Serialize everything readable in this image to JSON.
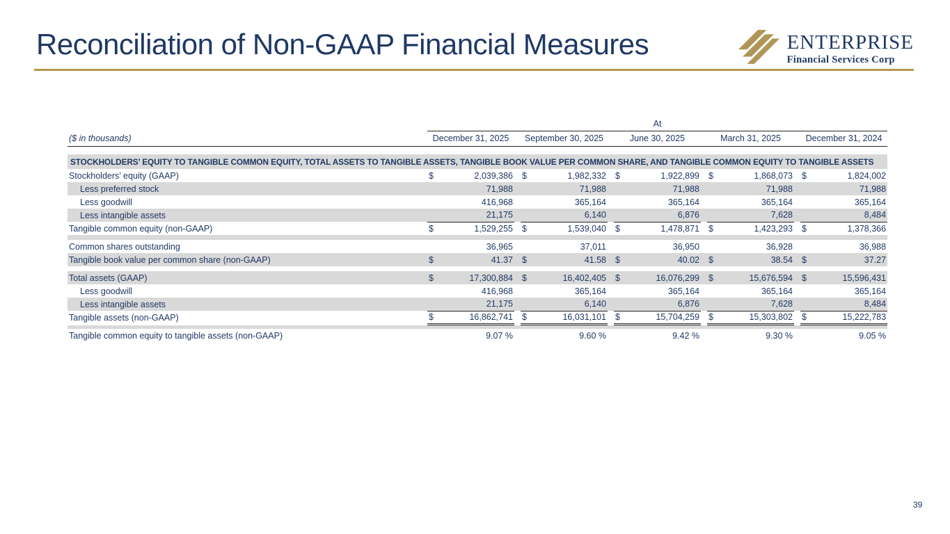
{
  "slide": {
    "title": "Reconciliation of Non-GAAP Financial Measures",
    "page_number": "39"
  },
  "logo": {
    "name": "ENTERPRISE",
    "subtitle": "Financial Services Corp"
  },
  "colors": {
    "navy": "#1f3864",
    "gold": "#b5974d",
    "shade": "#d9d9d9",
    "rule": "#262626"
  },
  "table": {
    "note": "($ in thousands)",
    "group_header": "At",
    "columns": [
      "December 31, 2025",
      "September 30, 2025",
      "June 30, 2025",
      "March 31, 2025",
      "December 31, 2024"
    ],
    "section_header": "STOCKHOLDERS’ EQUITY TO TANGIBLE COMMON EQUITY, TOTAL ASSETS TO TANGIBLE ASSETS, TANGIBLE BOOK VALUE PER COMMON SHARE, AND TANGIBLE COMMON EQUITY TO TANGIBLE ASSETS",
    "rows": [
      {
        "type": "data",
        "label": "Stockholders’ equity (GAAP)",
        "indent": false,
        "shade": false,
        "dollar": true,
        "underline": "none",
        "values": [
          "2,039,386",
          "1,982,332",
          "1,922,899",
          "1,868,073",
          "1,824,002"
        ]
      },
      {
        "type": "data",
        "label": "Less preferred stock",
        "indent": true,
        "shade": true,
        "dollar": false,
        "underline": "none",
        "values": [
          "71,988",
          "71,988",
          "71,988",
          "71,988",
          "71,988"
        ]
      },
      {
        "type": "data",
        "label": "Less goodwill",
        "indent": true,
        "shade": false,
        "dollar": false,
        "underline": "none",
        "values": [
          "416,968",
          "365,164",
          "365,164",
          "365,164",
          "365,164"
        ]
      },
      {
        "type": "data",
        "label": "Less intangible assets",
        "indent": true,
        "shade": true,
        "dollar": false,
        "underline": "single",
        "values": [
          "21,175",
          "6,140",
          "6,876",
          "7,628",
          "8,484"
        ]
      },
      {
        "type": "data",
        "label": "Tangible common equity (non-GAAP)",
        "indent": false,
        "shade": false,
        "dollar": true,
        "underline": "none",
        "values": [
          "1,529,255",
          "1,539,040",
          "1,478,871",
          "1,423,293",
          "1,378,366"
        ]
      },
      {
        "type": "spacer",
        "shade": true
      },
      {
        "type": "data",
        "label": "Common shares outstanding",
        "indent": false,
        "shade": false,
        "dollar": false,
        "underline": "none",
        "values": [
          "36,965",
          "37,011",
          "36,950",
          "36,928",
          "36,988"
        ]
      },
      {
        "type": "data",
        "label": "Tangible book value per common share (non-GAAP)",
        "indent": false,
        "shade": true,
        "dollar": true,
        "underline": "none",
        "values": [
          "41.37",
          "41.58",
          "40.02",
          "38.54",
          "37.27"
        ]
      },
      {
        "type": "spacer",
        "shade": false
      },
      {
        "type": "data",
        "label": "Total assets (GAAP)",
        "indent": false,
        "shade": true,
        "dollar": true,
        "underline": "none",
        "values": [
          "17,300,884",
          "16,402,405",
          "16,076,299",
          "15,676,594",
          "15,596,431"
        ]
      },
      {
        "type": "data",
        "label": "Less goodwill",
        "indent": true,
        "shade": false,
        "dollar": false,
        "underline": "none",
        "values": [
          "416,968",
          "365,164",
          "365,164",
          "365,164",
          "365,164"
        ]
      },
      {
        "type": "data",
        "label": "Less intangible assets",
        "indent": true,
        "shade": true,
        "dollar": false,
        "underline": "single",
        "values": [
          "21,175",
          "6,140",
          "6,876",
          "7,628",
          "8,484"
        ]
      },
      {
        "type": "data",
        "label": "Tangible assets (non-GAAP)",
        "indent": false,
        "shade": false,
        "dollar": true,
        "underline": "double",
        "values": [
          "16,862,741",
          "16,031,101",
          "15,704,259",
          "15,303,802",
          "15,222,783"
        ]
      },
      {
        "type": "spacer",
        "shade": true
      },
      {
        "type": "data",
        "label": "Tangible common equity to tangible assets (non-GAAP)",
        "indent": false,
        "shade": false,
        "dollar": false,
        "underline": "none",
        "values": [
          "9.07 %",
          "9.60 %",
          "9.42 %",
          "9.30 %",
          "9.05 %"
        ]
      }
    ]
  }
}
